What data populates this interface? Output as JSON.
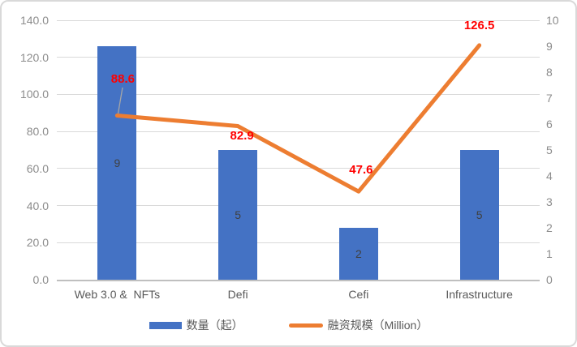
{
  "chart_data": {
    "type": "combo-bar-line",
    "title": "",
    "categories": [
      "Web 3.0 &  NFTs",
      "Defi",
      "Cefi",
      "Infrastructure"
    ],
    "series": [
      {
        "name": "数量（起）",
        "chart_type": "bar",
        "axis": "right",
        "values": [
          9,
          5,
          2,
          5
        ],
        "labels": [
          "9",
          "5",
          "2",
          "5"
        ],
        "color": "#4472C4"
      },
      {
        "name": "融资规模（Million）",
        "chart_type": "line",
        "axis": "left",
        "values": [
          88.6,
          82.9,
          47.6,
          126.5
        ],
        "labels": [
          "88.6",
          "82.9",
          "47.6",
          "126.5"
        ],
        "color": "#ED7D31",
        "label_color": "#FF0000"
      }
    ],
    "left_axis": {
      "min": 0,
      "max": 140,
      "tick_step": 20,
      "tick_labels": [
        "0.0",
        "20.0",
        "40.0",
        "60.0",
        "80.0",
        "100.0",
        "120.0",
        "140.0"
      ]
    },
    "right_axis": {
      "min": 0,
      "max": 10,
      "tick_step": 1,
      "tick_labels": [
        "0",
        "1",
        "2",
        "3",
        "4",
        "5",
        "6",
        "7",
        "8",
        "9",
        "10"
      ]
    },
    "grid": true,
    "legend_position": "bottom"
  },
  "colors": {
    "bar": "#4472C4",
    "line": "#ED7D31",
    "data_label": "#FF0000",
    "bar_label": "#404040",
    "axis_text": "#8C8C8C",
    "category_text": "#595959",
    "gridline": "#D9D9D9",
    "axis_line": "#BFBFBF",
    "leader_line": "#A6A6A6",
    "border": "#D9D9D9"
  }
}
